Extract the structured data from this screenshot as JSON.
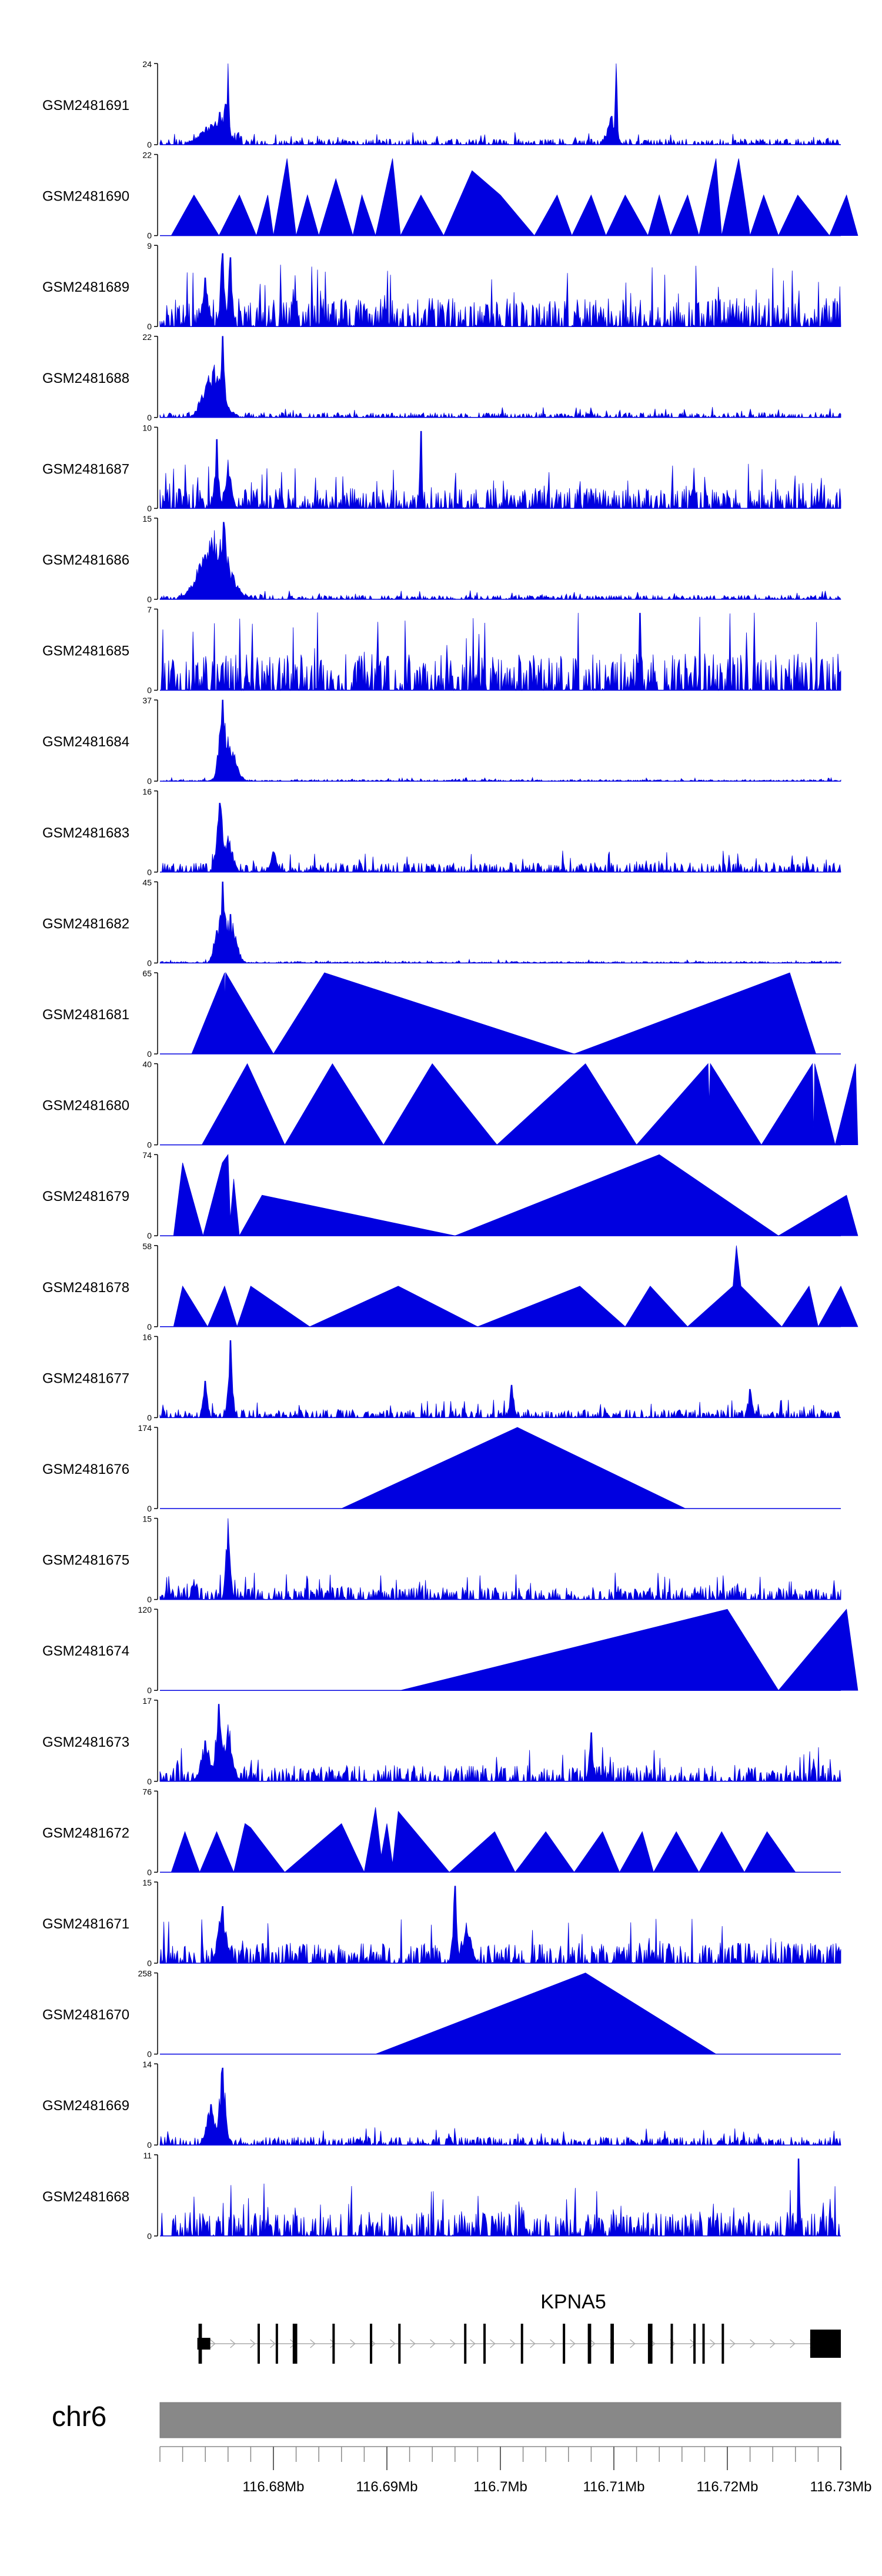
{
  "chart_data": {
    "type": "area",
    "title": "",
    "colors": {
      "signal": "#0000E0",
      "axis": "#000000",
      "gene": "#000000",
      "ideogram": "#888888",
      "ideogram_border": "#777777",
      "intron_arrow": "#AAAAAA"
    },
    "xlabel": "",
    "xlim": [
      116.67,
      116.73
    ],
    "x_ticks": [
      {
        "value": 116.68,
        "label": "116.68Mb"
      },
      {
        "value": 116.69,
        "label": "116.69Mb"
      },
      {
        "value": 116.7,
        "label": "116.7Mb"
      },
      {
        "value": 116.71,
        "label": "116.71Mb"
      },
      {
        "value": 116.72,
        "label": "116.72Mb"
      },
      {
        "value": 116.73,
        "label": "116.73Mb"
      }
    ],
    "tracks": [
      {
        "name": "GSM2481691",
        "ymin": 0,
        "ymax": 24,
        "style": "noise",
        "base": 0.07,
        "seed": 11,
        "peaks": [
          [
            116.6753,
            0.4,
            0.0006
          ],
          [
            116.6758,
            0.5,
            0.0003
          ],
          [
            116.676,
            1.0,
            0.0001
          ],
          [
            116.7102,
            1.0,
            0.0001
          ],
          [
            116.7098,
            0.35,
            0.0004
          ],
          [
            116.6745,
            0.25,
            0.001
          ]
        ]
      },
      {
        "name": "GSM2481690",
        "ymin": 0,
        "ymax": 22,
        "style": "triangles",
        "seed": 12,
        "anchors": [
          [
            116.671,
            0
          ],
          [
            116.673,
            0.5
          ],
          [
            116.6752,
            0
          ],
          [
            116.677,
            0.5
          ],
          [
            116.6785,
            0
          ],
          [
            116.6795,
            0.5
          ],
          [
            116.68,
            0
          ],
          [
            116.6812,
            0.95
          ],
          [
            116.682,
            0
          ],
          [
            116.683,
            0.5
          ],
          [
            116.684,
            0
          ],
          [
            116.6855,
            0.7
          ],
          [
            116.687,
            0
          ],
          [
            116.6878,
            0.5
          ],
          [
            116.689,
            0
          ],
          [
            116.6905,
            0.95
          ],
          [
            116.6912,
            0
          ],
          [
            116.693,
            0.5
          ],
          [
            116.695,
            0
          ],
          [
            116.6975,
            0.8
          ],
          [
            116.7,
            0.5
          ],
          [
            116.703,
            0
          ],
          [
            116.705,
            0.5
          ],
          [
            116.7063,
            0
          ],
          [
            116.708,
            0.5
          ],
          [
            116.7093,
            0
          ],
          [
            116.711,
            0.5
          ],
          [
            116.713,
            0
          ],
          [
            116.714,
            0.5
          ],
          [
            116.715,
            0
          ],
          [
            116.7165,
            0.5
          ],
          [
            116.7175,
            0
          ],
          [
            116.719,
            0.95
          ],
          [
            116.7195,
            0
          ],
          [
            116.721,
            0.95
          ],
          [
            116.722,
            0
          ],
          [
            116.7232,
            0.5
          ],
          [
            116.7245,
            0
          ],
          [
            116.7262,
            0.5
          ],
          [
            116.729,
            0
          ],
          [
            116.7305,
            0.5
          ],
          [
            116.7315,
            0
          ]
        ]
      },
      {
        "name": "GSM2481689",
        "ymin": 0,
        "ymax": 9,
        "style": "noise",
        "base": 0.35,
        "seed": 13,
        "peaks": [
          [
            116.6755,
            0.9,
            0.0002
          ],
          [
            116.6762,
            0.85,
            0.0002
          ],
          [
            116.674,
            0.6,
            0.0003
          ]
        ]
      },
      {
        "name": "GSM2481688",
        "ymin": 0,
        "ymax": 22,
        "style": "noise",
        "base": 0.06,
        "seed": 14,
        "peaks": [
          [
            116.6748,
            0.65,
            0.0008
          ],
          [
            116.6755,
            1.0,
            0.0002
          ],
          [
            116.6742,
            0.45,
            0.0006
          ]
        ]
      },
      {
        "name": "GSM2481687",
        "ymin": 0,
        "ymax": 10,
        "style": "noise",
        "base": 0.25,
        "seed": 15,
        "peaks": [
          [
            116.675,
            0.85,
            0.0002
          ],
          [
            116.693,
            0.95,
            0.0001
          ],
          [
            116.676,
            0.6,
            0.0003
          ]
        ]
      },
      {
        "name": "GSM2481686",
        "ymin": 0,
        "ymax": 15,
        "style": "noise",
        "base": 0.05,
        "seed": 16,
        "peaks": [
          [
            116.6748,
            0.85,
            0.0012
          ],
          [
            116.6756,
            0.95,
            0.0004
          ],
          [
            116.674,
            0.55,
            0.0005
          ]
        ]
      },
      {
        "name": "GSM2481685",
        "ymin": 0,
        "ymax": 7,
        "style": "noise",
        "base": 0.45,
        "seed": 17,
        "peaks": [
          [
            116.7123,
            0.95,
            0.0001
          ]
        ]
      },
      {
        "name": "GSM2481684",
        "ymin": 0,
        "ymax": 37,
        "style": "noise",
        "base": 0.02,
        "seed": 18,
        "peaks": [
          [
            116.6755,
            1.0,
            0.0003
          ],
          [
            116.676,
            0.55,
            0.0006
          ],
          [
            116.6765,
            0.3,
            0.0004
          ]
        ]
      },
      {
        "name": "GSM2481683",
        "ymin": 0,
        "ymax": 16,
        "style": "noise",
        "base": 0.12,
        "seed": 19,
        "peaks": [
          [
            116.6753,
            0.85,
            0.0003
          ],
          [
            116.676,
            0.45,
            0.0004
          ],
          [
            116.68,
            0.25,
            0.0003
          ]
        ]
      },
      {
        "name": "GSM2481682",
        "ymin": 0,
        "ymax": 45,
        "style": "noise",
        "base": 0.02,
        "seed": 20,
        "peaks": [
          [
            116.6755,
            1.0,
            0.0003
          ],
          [
            116.6762,
            0.6,
            0.0005
          ],
          [
            116.675,
            0.4,
            0.0003
          ]
        ]
      },
      {
        "name": "GSM2481681",
        "ymin": 0,
        "ymax": 65,
        "style": "triangles",
        "seed": 21,
        "anchors": [
          [
            116.6728,
            0
          ],
          [
            116.6757,
            1.0
          ],
          [
            116.6757,
            0.6
          ],
          [
            116.6758,
            1.0
          ],
          [
            116.68,
            0
          ],
          [
            116.6845,
            1.0
          ],
          [
            116.7065,
            0
          ],
          [
            116.7255,
            1.0
          ],
          [
            116.7278,
            0
          ]
        ]
      },
      {
        "name": "GSM2481680",
        "ymin": 0,
        "ymax": 40,
        "style": "triangles",
        "seed": 22,
        "anchors": [
          [
            116.6737,
            0
          ],
          [
            116.6777,
            1.0
          ],
          [
            116.681,
            0
          ],
          [
            116.6852,
            1.0
          ],
          [
            116.6897,
            0
          ],
          [
            116.694,
            1.0
          ],
          [
            116.6997,
            0
          ],
          [
            116.7075,
            1.0
          ],
          [
            116.712,
            0
          ],
          [
            116.7183,
            1.0
          ],
          [
            116.7184,
            0.5
          ],
          [
            116.7185,
            1.0
          ],
          [
            116.723,
            0
          ],
          [
            116.7275,
            1.0
          ],
          [
            116.7276,
            0.1
          ],
          [
            116.7277,
            1.0
          ],
          [
            116.7295,
            0
          ],
          [
            116.7313,
            1.0
          ],
          [
            116.7315,
            0
          ]
        ]
      },
      {
        "name": "GSM2481679",
        "ymin": 0,
        "ymax": 74,
        "style": "triangles",
        "seed": 23,
        "anchors": [
          [
            116.6712,
            0
          ],
          [
            116.672,
            0.9
          ],
          [
            116.6738,
            0
          ],
          [
            116.6755,
            0.9
          ],
          [
            116.676,
            1.0
          ],
          [
            116.6762,
            0.2
          ],
          [
            116.6765,
            0.7
          ],
          [
            116.677,
            0
          ],
          [
            116.679,
            0.5
          ],
          [
            116.696,
            0
          ],
          [
            116.714,
            1.0
          ],
          [
            116.7245,
            0
          ],
          [
            116.7305,
            0.5
          ],
          [
            116.7315,
            0
          ]
        ]
      },
      {
        "name": "GSM2481678",
        "ymin": 0,
        "ymax": 58,
        "style": "triangles",
        "seed": 24,
        "anchors": [
          [
            116.6712,
            0
          ],
          [
            116.672,
            0.5
          ],
          [
            116.6742,
            0
          ],
          [
            116.6757,
            0.5
          ],
          [
            116.6768,
            0
          ],
          [
            116.678,
            0.5
          ],
          [
            116.6832,
            0
          ],
          [
            116.691,
            0.5
          ],
          [
            116.698,
            0
          ],
          [
            116.707,
            0.5
          ],
          [
            116.711,
            0
          ],
          [
            116.7132,
            0.5
          ],
          [
            116.7165,
            0
          ],
          [
            116.7205,
            0.5
          ],
          [
            116.7208,
            1.0
          ],
          [
            116.7212,
            0.5
          ],
          [
            116.7248,
            0
          ],
          [
            116.7272,
            0.5
          ],
          [
            116.728,
            0
          ],
          [
            116.73,
            0.5
          ],
          [
            116.7315,
            0
          ]
        ]
      },
      {
        "name": "GSM2481677",
        "ymin": 0,
        "ymax": 16,
        "style": "noise",
        "base": 0.1,
        "seed": 25,
        "peaks": [
          [
            116.6762,
            0.95,
            0.0002
          ],
          [
            116.674,
            0.45,
            0.0002
          ],
          [
            116.701,
            0.4,
            0.0002
          ],
          [
            116.722,
            0.35,
            0.0002
          ]
        ]
      },
      {
        "name": "GSM2481676",
        "ymin": 0,
        "ymax": 174,
        "style": "triangles",
        "seed": 26,
        "anchors": [
          [
            116.686,
            0
          ],
          [
            116.7015,
            1.0
          ],
          [
            116.7163,
            0
          ]
        ]
      },
      {
        "name": "GSM2481675",
        "ymin": 0,
        "ymax": 15,
        "style": "noise",
        "base": 0.15,
        "seed": 27,
        "peaks": [
          [
            116.676,
            1.0,
            0.0002
          ],
          [
            116.673,
            0.25,
            0.0002
          ]
        ]
      },
      {
        "name": "GSM2481674",
        "ymin": 0,
        "ymax": 120,
        "style": "triangles",
        "seed": 27,
        "anchors": [
          [
            116.6912,
            0
          ],
          [
            116.72,
            1.0
          ],
          [
            116.7245,
            0
          ],
          [
            116.7305,
            1.0
          ],
          [
            116.7315,
            0
          ]
        ]
      },
      {
        "name": "GSM2481673",
        "ymin": 0,
        "ymax": 17,
        "style": "noise",
        "base": 0.2,
        "seed": 28,
        "peaks": [
          [
            116.6752,
            0.95,
            0.0003
          ],
          [
            116.676,
            0.7,
            0.0004
          ],
          [
            116.674,
            0.5,
            0.0004
          ],
          [
            116.708,
            0.6,
            0.0002
          ]
        ]
      },
      {
        "name": "GSM2481672",
        "ymin": 0,
        "ymax": 76,
        "style": "triangles",
        "seed": 29,
        "anchors": [
          [
            116.671,
            0
          ],
          [
            116.6722,
            0.5
          ],
          [
            116.6735,
            0
          ],
          [
            116.675,
            0.5
          ],
          [
            116.6765,
            0
          ],
          [
            116.6775,
            0.6
          ],
          [
            116.678,
            0.55
          ],
          [
            116.681,
            0
          ],
          [
            116.686,
            0.6
          ],
          [
            116.688,
            0
          ],
          [
            116.689,
            0.8
          ],
          [
            116.6895,
            0.2
          ],
          [
            116.69,
            0.6
          ],
          [
            116.6905,
            0.1
          ],
          [
            116.691,
            0.75
          ],
          [
            116.6955,
            0
          ],
          [
            116.6995,
            0.5
          ],
          [
            116.7013,
            0
          ],
          [
            116.704,
            0.5
          ],
          [
            116.7065,
            0
          ],
          [
            116.709,
            0.5
          ],
          [
            116.7105,
            0
          ],
          [
            116.7125,
            0.5
          ],
          [
            116.7135,
            0
          ],
          [
            116.7155,
            0.5
          ],
          [
            116.7175,
            0
          ],
          [
            116.7195,
            0.5
          ],
          [
            116.7215,
            0
          ],
          [
            116.7235,
            0.5
          ],
          [
            116.726,
            0
          ]
        ]
      },
      {
        "name": "GSM2481671",
        "ymin": 0,
        "ymax": 15,
        "style": "noise",
        "base": 0.25,
        "seed": 30,
        "peaks": [
          [
            116.6755,
            0.7,
            0.0004
          ],
          [
            116.696,
            0.95,
            0.0002
          ],
          [
            116.697,
            0.5,
            0.0004
          ]
        ]
      },
      {
        "name": "GSM2481670",
        "ymin": 0,
        "ymax": 258,
        "style": "triangles",
        "seed": 31,
        "anchors": [
          [
            116.689,
            0
          ],
          [
            116.7075,
            1.0
          ],
          [
            116.719,
            0
          ]
        ]
      },
      {
        "name": "GSM2481669",
        "ymin": 0,
        "ymax": 14,
        "style": "noise",
        "base": 0.1,
        "seed": 32,
        "peaks": [
          [
            116.6755,
            0.95,
            0.0003
          ],
          [
            116.6745,
            0.5,
            0.0004
          ]
        ]
      },
      {
        "name": "GSM2481668",
        "ymin": 0,
        "ymax": 11,
        "style": "noise",
        "base": 0.3,
        "seed": 33,
        "peaks": [
          [
            116.7263,
            0.95,
            0.0001
          ]
        ]
      }
    ],
    "gene": {
      "label": "KPNA5",
      "start": 116.6734,
      "end": 116.73,
      "exons": [
        [
          116.6734,
          116.6737
        ],
        [
          116.6786,
          116.6788
        ],
        [
          116.6802,
          116.6804
        ],
        [
          116.6817,
          116.6821
        ],
        [
          116.6852,
          116.6854
        ],
        [
          116.6885,
          116.6887
        ],
        [
          116.691,
          116.6912
        ],
        [
          116.6968,
          116.697
        ],
        [
          116.6985,
          116.6987
        ],
        [
          116.7018,
          116.702
        ],
        [
          116.7055,
          116.7057
        ],
        [
          116.7077,
          116.708
        ],
        [
          116.7097,
          116.71
        ],
        [
          116.713,
          116.7134
        ],
        [
          116.715,
          116.7152
        ],
        [
          116.717,
          116.7172
        ],
        [
          116.7178,
          116.718
        ],
        [
          116.7195,
          116.7197
        ],
        [
          116.7273,
          116.73
        ]
      ]
    },
    "ideogram": {
      "label": "chr6"
    }
  }
}
